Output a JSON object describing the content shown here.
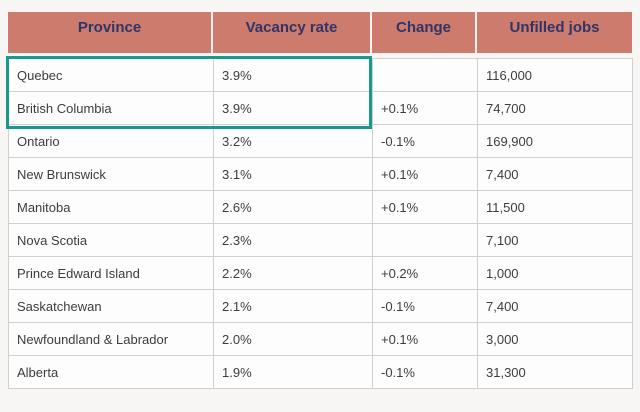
{
  "table": {
    "columns": [
      "Province",
      "Vacancy rate",
      "Change",
      "Unfilled jobs"
    ],
    "rows": [
      {
        "province": "Quebec",
        "vacancy_rate": "3.9%",
        "change": "",
        "unfilled_jobs": "116,000"
      },
      {
        "province": "British Columbia",
        "vacancy_rate": "3.9%",
        "change": "+0.1%",
        "unfilled_jobs": "74,700"
      },
      {
        "province": "Ontario",
        "vacancy_rate": "3.2%",
        "change": "-0.1%",
        "unfilled_jobs": "169,900"
      },
      {
        "province": "New Brunswick",
        "vacancy_rate": "3.1%",
        "change": "+0.1%",
        "unfilled_jobs": "7,400"
      },
      {
        "province": "Manitoba",
        "vacancy_rate": "2.6%",
        "change": "+0.1%",
        "unfilled_jobs": "11,500"
      },
      {
        "province": "Nova Scotia",
        "vacancy_rate": "2.3%",
        "change": "",
        "unfilled_jobs": "7,100"
      },
      {
        "province": "Prince Edward Island",
        "vacancy_rate": "2.2%",
        "change": "+0.2%",
        "unfilled_jobs": "1,000"
      },
      {
        "province": "Saskatchewan",
        "vacancy_rate": "2.1%",
        "change": "-0.1%",
        "unfilled_jobs": "7,400"
      },
      {
        "province": "Newfoundland & Labrador",
        "vacancy_rate": "2.0%",
        "change": "+0.1%",
        "unfilled_jobs": "3,000"
      },
      {
        "province": "Alberta",
        "vacancy_rate": "1.9%",
        "change": "-0.1%",
        "unfilled_jobs": "31,300"
      }
    ],
    "highlight": {
      "rows": [
        "Quebec",
        "British Columbia"
      ],
      "columns": [
        "Province",
        "Vacancy rate"
      ],
      "border_color": "#17998e"
    }
  },
  "colors": {
    "header_background": "#cd7b6d",
    "header_text": "#2f3566",
    "body_text": "#3d3d3d",
    "grid_border": "#d2d0cf",
    "highlight_border": "#17998e",
    "page_background": "#f8f6f5"
  }
}
